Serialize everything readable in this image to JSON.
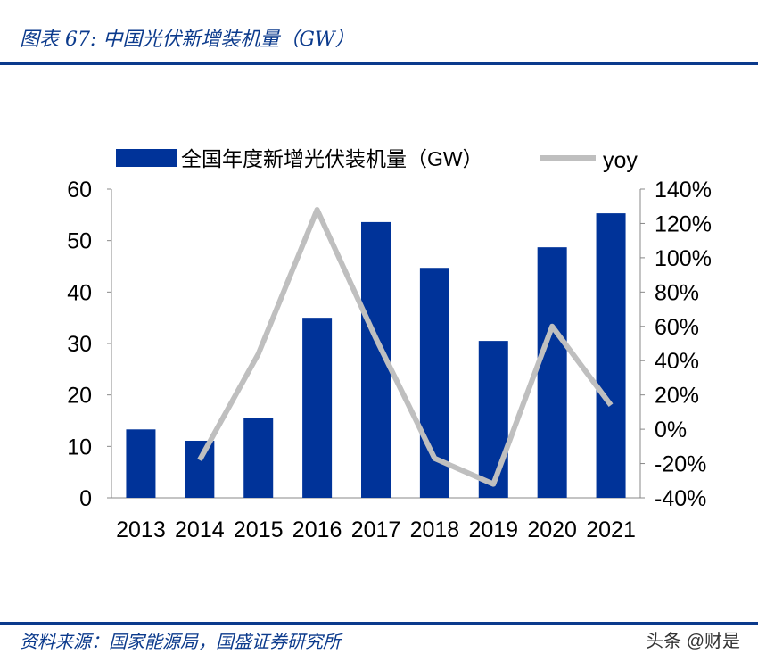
{
  "header": {
    "title": "图表 67:  中国光伏新增装机量（GW）"
  },
  "footer": {
    "source": "资料来源：国家能源局，国盛证券研究所",
    "watermark": "头条 @财是"
  },
  "colors": {
    "bar": "#003399",
    "line": "#bfbfbf",
    "title": "#0b3a8c"
  },
  "chart_data": {
    "type": "bar+line",
    "categories": [
      "2013",
      "2014",
      "2015",
      "2016",
      "2017",
      "2018",
      "2019",
      "2020",
      "2021"
    ],
    "series": [
      {
        "name": "全国年度新增光伏装机量（GW）",
        "type": "bar",
        "axis": "left",
        "values": [
          13.3,
          11.1,
          15.6,
          35.0,
          53.6,
          44.7,
          30.5,
          48.7,
          55.3
        ]
      },
      {
        "name": "yoy",
        "type": "line",
        "axis": "right",
        "values": [
          null,
          -18,
          44,
          128,
          53,
          -17,
          -32,
          60,
          14
        ]
      }
    ],
    "yleft": {
      "ylim": [
        0,
        60
      ],
      "ticks": [
        "0",
        "10",
        "20",
        "30",
        "40",
        "50",
        "60"
      ]
    },
    "yright": {
      "ylim": [
        -40,
        140
      ],
      "ticks": [
        "-40%",
        "-20%",
        "0%",
        "20%",
        "40%",
        "60%",
        "80%",
        "100%",
        "120%",
        "140%"
      ]
    },
    "legend": "top",
    "grid": false
  }
}
